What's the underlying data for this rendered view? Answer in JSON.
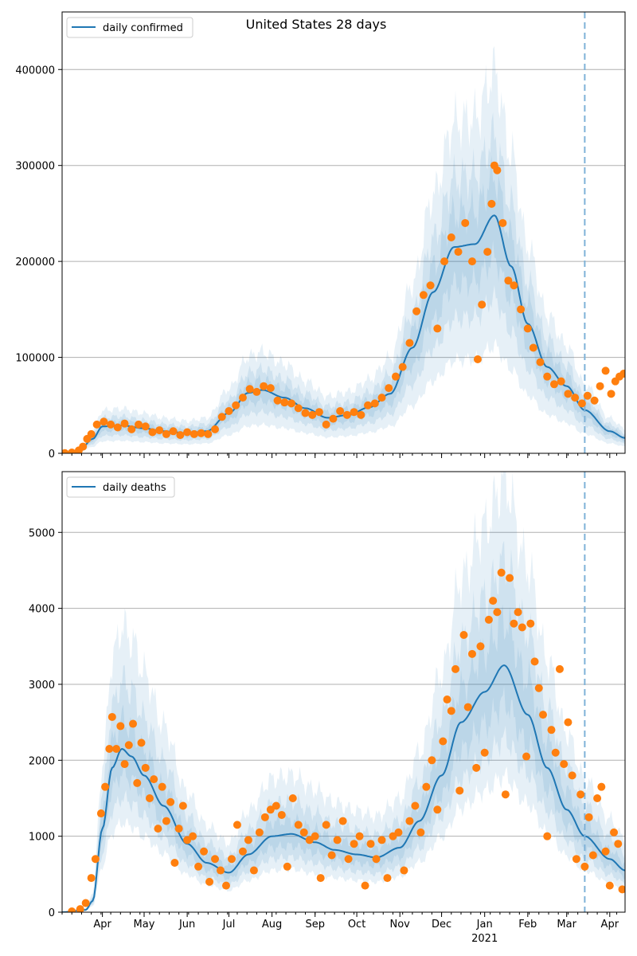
{
  "title": "United States 28 days",
  "colors": {
    "model_line": "#1f77b4",
    "observed_points": "#ff7f0e",
    "band": "#1f77b4",
    "grid": "#b0b0b0",
    "forecast_marker": "#7fb2d8"
  },
  "x_axis": {
    "month_labels": [
      "Apr",
      "May",
      "Jun",
      "Jul",
      "Aug",
      "Sep",
      "Oct",
      "Nov",
      "Dec",
      "Jan",
      "Feb",
      "Mar",
      "Apr"
    ],
    "month_dates": [
      "2020-04-01",
      "2020-05-01",
      "2020-06-01",
      "2020-07-01",
      "2020-08-01",
      "2020-09-01",
      "2020-10-01",
      "2020-11-01",
      "2020-12-01",
      "2021-01-01",
      "2021-02-01",
      "2021-03-01",
      "2021-04-01"
    ],
    "year_label": "2021",
    "range": [
      "2020-03-03",
      "2021-04-12"
    ],
    "forecast_start": "2021-03-14"
  },
  "chart_data": [
    {
      "type": "line",
      "legend": "daily confirmed",
      "legend_position": "top-left",
      "grid": "horizontal",
      "ylim": [
        0,
        460000
      ],
      "yticks": [
        0,
        100000,
        200000,
        300000,
        400000
      ],
      "model_anchors": [
        [
          "2020-03-03",
          0
        ],
        [
          "2020-03-15",
          2000
        ],
        [
          "2020-03-25",
          15000
        ],
        [
          "2020-04-01",
          28000
        ],
        [
          "2020-04-15",
          29000
        ],
        [
          "2020-05-01",
          26000
        ],
        [
          "2020-05-15",
          23000
        ],
        [
          "2020-06-01",
          21000
        ],
        [
          "2020-06-15",
          23000
        ],
        [
          "2020-07-01",
          42000
        ],
        [
          "2020-07-15",
          63000
        ],
        [
          "2020-07-25",
          66000
        ],
        [
          "2020-08-10",
          58000
        ],
        [
          "2020-08-25",
          47000
        ],
        [
          "2020-09-10",
          37000
        ],
        [
          "2020-09-25",
          40000
        ],
        [
          "2020-10-10",
          48000
        ],
        [
          "2020-10-25",
          62000
        ],
        [
          "2020-11-10",
          110000
        ],
        [
          "2020-11-25",
          168000
        ],
        [
          "2020-12-10",
          215000
        ],
        [
          "2020-12-25",
          218000
        ],
        [
          "2021-01-08",
          248000
        ],
        [
          "2021-01-20",
          195000
        ],
        [
          "2021-02-01",
          135000
        ],
        [
          "2021-02-15",
          90000
        ],
        [
          "2021-03-01",
          70000
        ],
        [
          "2021-03-14",
          45000
        ],
        [
          "2021-04-01",
          23000
        ],
        [
          "2021-04-12",
          16000
        ]
      ],
      "band_multipliers": [
        [
          0.45,
          1.6
        ],
        [
          0.65,
          1.33
        ],
        [
          0.82,
          1.16
        ]
      ],
      "observed": [
        [
          "2020-03-05",
          200
        ],
        [
          "2020-03-10",
          800
        ],
        [
          "2020-03-15",
          3000
        ],
        [
          "2020-03-18",
          7000
        ],
        [
          "2020-03-21",
          15000
        ],
        [
          "2020-03-24",
          20000
        ],
        [
          "2020-03-28",
          30000
        ],
        [
          "2020-04-02",
          33000
        ],
        [
          "2020-04-07",
          30000
        ],
        [
          "2020-04-12",
          27000
        ],
        [
          "2020-04-17",
          31000
        ],
        [
          "2020-04-22",
          25000
        ],
        [
          "2020-04-27",
          30000
        ],
        [
          "2020-05-02",
          28000
        ],
        [
          "2020-05-07",
          22000
        ],
        [
          "2020-05-12",
          24000
        ],
        [
          "2020-05-17",
          20000
        ],
        [
          "2020-05-22",
          23000
        ],
        [
          "2020-05-27",
          19000
        ],
        [
          "2020-06-01",
          22000
        ],
        [
          "2020-06-06",
          20000
        ],
        [
          "2020-06-11",
          21000
        ],
        [
          "2020-06-16",
          20000
        ],
        [
          "2020-06-21",
          25000
        ],
        [
          "2020-06-26",
          38000
        ],
        [
          "2020-07-01",
          44000
        ],
        [
          "2020-07-06",
          50000
        ],
        [
          "2020-07-11",
          58000
        ],
        [
          "2020-07-16",
          67000
        ],
        [
          "2020-07-21",
          64000
        ],
        [
          "2020-07-26",
          70000
        ],
        [
          "2020-07-31",
          68000
        ],
        [
          "2020-08-05",
          55000
        ],
        [
          "2020-08-10",
          53000
        ],
        [
          "2020-08-15",
          52000
        ],
        [
          "2020-08-20",
          47000
        ],
        [
          "2020-08-25",
          42000
        ],
        [
          "2020-08-30",
          40000
        ],
        [
          "2020-09-04",
          43000
        ],
        [
          "2020-09-09",
          30000
        ],
        [
          "2020-09-14",
          36000
        ],
        [
          "2020-09-19",
          44000
        ],
        [
          "2020-09-24",
          40000
        ],
        [
          "2020-09-29",
          43000
        ],
        [
          "2020-10-04",
          40000
        ],
        [
          "2020-10-09",
          50000
        ],
        [
          "2020-10-14",
          52000
        ],
        [
          "2020-10-19",
          58000
        ],
        [
          "2020-10-24",
          68000
        ],
        [
          "2020-10-29",
          80000
        ],
        [
          "2020-11-03",
          90000
        ],
        [
          "2020-11-08",
          115000
        ],
        [
          "2020-11-13",
          148000
        ],
        [
          "2020-11-18",
          165000
        ],
        [
          "2020-11-23",
          175000
        ],
        [
          "2020-11-28",
          130000
        ],
        [
          "2020-12-03",
          200000
        ],
        [
          "2020-12-08",
          225000
        ],
        [
          "2020-12-13",
          210000
        ],
        [
          "2020-12-18",
          240000
        ],
        [
          "2020-12-23",
          200000
        ],
        [
          "2020-12-27",
          98000
        ],
        [
          "2020-12-30",
          155000
        ],
        [
          "2021-01-03",
          210000
        ],
        [
          "2021-01-06",
          260000
        ],
        [
          "2021-01-08",
          300000
        ],
        [
          "2021-01-10",
          295000
        ],
        [
          "2021-01-14",
          240000
        ],
        [
          "2021-01-18",
          180000
        ],
        [
          "2021-01-22",
          175000
        ],
        [
          "2021-01-27",
          150000
        ],
        [
          "2021-02-01",
          130000
        ],
        [
          "2021-02-05",
          110000
        ],
        [
          "2021-02-10",
          95000
        ],
        [
          "2021-02-15",
          80000
        ],
        [
          "2021-02-20",
          72000
        ],
        [
          "2021-02-25",
          75000
        ],
        [
          "2021-03-02",
          62000
        ],
        [
          "2021-03-07",
          58000
        ],
        [
          "2021-03-12",
          52000
        ],
        [
          "2021-03-16",
          60000
        ],
        [
          "2021-03-21",
          55000
        ],
        [
          "2021-03-25",
          70000
        ],
        [
          "2021-03-29",
          86000
        ],
        [
          "2021-04-02",
          62000
        ],
        [
          "2021-04-05",
          75000
        ],
        [
          "2021-04-08",
          80000
        ],
        [
          "2021-04-11",
          83000
        ]
      ]
    },
    {
      "type": "line",
      "legend": "daily deaths",
      "legend_position": "top-left",
      "grid": "horizontal",
      "ylim": [
        0,
        5800
      ],
      "yticks": [
        0,
        1000,
        2000,
        3000,
        4000,
        5000
      ],
      "model_anchors": [
        [
          "2020-03-03",
          0
        ],
        [
          "2020-03-20",
          30
        ],
        [
          "2020-03-25",
          150
        ],
        [
          "2020-04-01",
          1100
        ],
        [
          "2020-04-08",
          1900
        ],
        [
          "2020-04-15",
          2150
        ],
        [
          "2020-04-22",
          2050
        ],
        [
          "2020-05-01",
          1800
        ],
        [
          "2020-05-15",
          1400
        ],
        [
          "2020-06-01",
          900
        ],
        [
          "2020-06-15",
          650
        ],
        [
          "2020-07-01",
          520
        ],
        [
          "2020-07-15",
          760
        ],
        [
          "2020-08-01",
          1000
        ],
        [
          "2020-08-15",
          1030
        ],
        [
          "2020-09-01",
          920
        ],
        [
          "2020-09-15",
          820
        ],
        [
          "2020-10-01",
          760
        ],
        [
          "2020-10-15",
          720
        ],
        [
          "2020-11-01",
          850
        ],
        [
          "2020-11-15",
          1200
        ],
        [
          "2020-12-01",
          1800
        ],
        [
          "2020-12-15",
          2500
        ],
        [
          "2021-01-01",
          2900
        ],
        [
          "2021-01-15",
          3250
        ],
        [
          "2021-02-01",
          2600
        ],
        [
          "2021-02-15",
          1900
        ],
        [
          "2021-03-01",
          1350
        ],
        [
          "2021-03-14",
          1000
        ],
        [
          "2021-04-01",
          700
        ],
        [
          "2021-04-12",
          550
        ]
      ],
      "band_multipliers": [
        [
          0.55,
          1.75
        ],
        [
          0.7,
          1.42
        ],
        [
          0.85,
          1.18
        ]
      ],
      "observed": [
        [
          "2020-03-10",
          10
        ],
        [
          "2020-03-16",
          40
        ],
        [
          "2020-03-20",
          120
        ],
        [
          "2020-03-24",
          450
        ],
        [
          "2020-03-27",
          700
        ],
        [
          "2020-03-31",
          1300
        ],
        [
          "2020-04-03",
          1650
        ],
        [
          "2020-04-06",
          2150
        ],
        [
          "2020-04-08",
          2570
        ],
        [
          "2020-04-11",
          2150
        ],
        [
          "2020-04-14",
          2450
        ],
        [
          "2020-04-17",
          1950
        ],
        [
          "2020-04-20",
          2200
        ],
        [
          "2020-04-23",
          2480
        ],
        [
          "2020-04-26",
          1700
        ],
        [
          "2020-04-29",
          2230
        ],
        [
          "2020-05-02",
          1900
        ],
        [
          "2020-05-05",
          1500
        ],
        [
          "2020-05-08",
          1750
        ],
        [
          "2020-05-11",
          1100
        ],
        [
          "2020-05-14",
          1650
        ],
        [
          "2020-05-17",
          1200
        ],
        [
          "2020-05-20",
          1450
        ],
        [
          "2020-05-23",
          650
        ],
        [
          "2020-05-26",
          1100
        ],
        [
          "2020-05-29",
          1400
        ],
        [
          "2020-06-01",
          950
        ],
        [
          "2020-06-05",
          1000
        ],
        [
          "2020-06-09",
          600
        ],
        [
          "2020-06-13",
          800
        ],
        [
          "2020-06-17",
          400
        ],
        [
          "2020-06-21",
          700
        ],
        [
          "2020-06-25",
          550
        ],
        [
          "2020-06-29",
          350
        ],
        [
          "2020-07-03",
          700
        ],
        [
          "2020-07-07",
          1150
        ],
        [
          "2020-07-11",
          800
        ],
        [
          "2020-07-15",
          950
        ],
        [
          "2020-07-19",
          550
        ],
        [
          "2020-07-23",
          1050
        ],
        [
          "2020-07-27",
          1250
        ],
        [
          "2020-07-31",
          1350
        ],
        [
          "2020-08-04",
          1400
        ],
        [
          "2020-08-08",
          1280
        ],
        [
          "2020-08-12",
          600
        ],
        [
          "2020-08-16",
          1500
        ],
        [
          "2020-08-20",
          1150
        ],
        [
          "2020-08-24",
          1050
        ],
        [
          "2020-08-28",
          950
        ],
        [
          "2020-09-01",
          1000
        ],
        [
          "2020-09-05",
          450
        ],
        [
          "2020-09-09",
          1150
        ],
        [
          "2020-09-13",
          750
        ],
        [
          "2020-09-17",
          950
        ],
        [
          "2020-09-21",
          1200
        ],
        [
          "2020-09-25",
          700
        ],
        [
          "2020-09-29",
          900
        ],
        [
          "2020-10-03",
          1000
        ],
        [
          "2020-10-07",
          350
        ],
        [
          "2020-10-11",
          900
        ],
        [
          "2020-10-15",
          700
        ],
        [
          "2020-10-19",
          950
        ],
        [
          "2020-10-23",
          450
        ],
        [
          "2020-10-27",
          1000
        ],
        [
          "2020-10-31",
          1050
        ],
        [
          "2020-11-04",
          550
        ],
        [
          "2020-11-08",
          1200
        ],
        [
          "2020-11-12",
          1400
        ],
        [
          "2020-11-16",
          1050
        ],
        [
          "2020-11-20",
          1650
        ],
        [
          "2020-11-24",
          2000
        ],
        [
          "2020-11-28",
          1350
        ],
        [
          "2020-12-02",
          2250
        ],
        [
          "2020-12-05",
          2800
        ],
        [
          "2020-12-08",
          2650
        ],
        [
          "2020-12-11",
          3200
        ],
        [
          "2020-12-14",
          1600
        ],
        [
          "2020-12-17",
          3650
        ],
        [
          "2020-12-20",
          2700
        ],
        [
          "2020-12-23",
          3400
        ],
        [
          "2020-12-26",
          1900
        ],
        [
          "2020-12-29",
          3500
        ],
        [
          "2021-01-01",
          2100
        ],
        [
          "2021-01-04",
          3850
        ],
        [
          "2021-01-07",
          4100
        ],
        [
          "2021-01-10",
          3950
        ],
        [
          "2021-01-13",
          4470
        ],
        [
          "2021-01-16",
          1550
        ],
        [
          "2021-01-19",
          4400
        ],
        [
          "2021-01-22",
          3800
        ],
        [
          "2021-01-25",
          3950
        ],
        [
          "2021-01-28",
          3750
        ],
        [
          "2021-01-31",
          2050
        ],
        [
          "2021-02-03",
          3800
        ],
        [
          "2021-02-06",
          3300
        ],
        [
          "2021-02-09",
          2950
        ],
        [
          "2021-02-12",
          2600
        ],
        [
          "2021-02-15",
          1000
        ],
        [
          "2021-02-18",
          2400
        ],
        [
          "2021-02-21",
          2100
        ],
        [
          "2021-02-24",
          3200
        ],
        [
          "2021-02-27",
          1950
        ],
        [
          "2021-03-02",
          2500
        ],
        [
          "2021-03-05",
          1800
        ],
        [
          "2021-03-08",
          700
        ],
        [
          "2021-03-11",
          1550
        ],
        [
          "2021-03-14",
          600
        ],
        [
          "2021-03-17",
          1250
        ],
        [
          "2021-03-20",
          750
        ],
        [
          "2021-03-23",
          1500
        ],
        [
          "2021-03-26",
          1650
        ],
        [
          "2021-03-29",
          800
        ],
        [
          "2021-04-01",
          350
        ],
        [
          "2021-04-04",
          1050
        ],
        [
          "2021-04-07",
          900
        ],
        [
          "2021-04-10",
          300
        ]
      ]
    }
  ]
}
